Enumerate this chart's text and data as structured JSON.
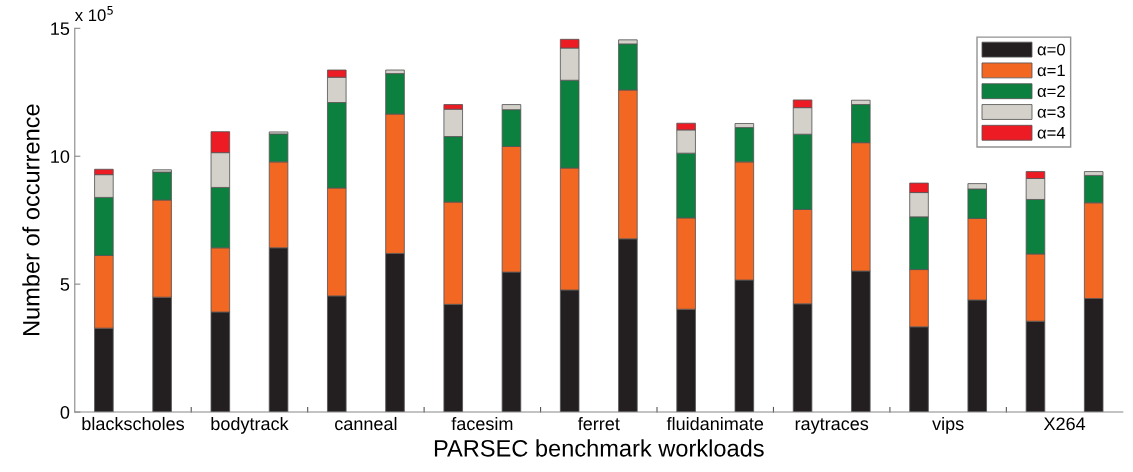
{
  "chart_data": {
    "type": "bar",
    "stacked": true,
    "xlabel": "PARSEC benchmark workloads",
    "ylabel": "Number of occurrence",
    "annotations": [
      "x 10$^{5}$"
    ],
    "categories": [
      "blackscholes",
      null,
      "bodytrack",
      null,
      "canneal",
      null,
      "facesim",
      null,
      "ferret",
      null,
      "fluidanimate",
      null,
      "raytraces",
      null,
      "vips",
      null,
      "X264",
      null
    ],
    "series": [
      {
        "name": "α=0",
        "color": "#231f20",
        "values": [
          3.28,
          4.49,
          3.91,
          6.42,
          4.54,
          6.2,
          4.21,
          5.47,
          4.77,
          6.77,
          4.02,
          5.16,
          4.23,
          5.51,
          3.33,
          4.38,
          3.55,
          4.44
        ]
      },
      {
        "name": "α=1",
        "color": "#f26722",
        "values": [
          2.84,
          3.8,
          2.51,
          3.36,
          4.22,
          5.45,
          4.0,
          4.91,
          4.77,
          5.82,
          3.57,
          4.62,
          3.69,
          5.02,
          2.24,
          3.19,
          2.63,
          3.74
        ]
      },
      {
        "name": "α=2",
        "color": "#0c803f",
        "values": [
          2.27,
          1.09,
          2.36,
          1.09,
          3.34,
          1.58,
          2.56,
          1.44,
          3.43,
          1.8,
          2.53,
          1.34,
          2.94,
          1.49,
          2.06,
          1.15,
          2.13,
          1.07
        ]
      },
      {
        "name": "α=3",
        "color": "#d4d1ca",
        "values": [
          0.89,
          0.09,
          1.36,
          0.08,
          0.99,
          0.14,
          1.07,
          0.2,
          1.26,
          0.16,
          0.91,
          0.16,
          1.04,
          0.17,
          0.95,
          0.21,
          0.82,
          0.15
        ]
      },
      {
        "name": "α=4",
        "color": "#ed1c24",
        "values": [
          0.21,
          null,
          0.82,
          null,
          0.28,
          null,
          0.18,
          null,
          0.34,
          null,
          0.26,
          null,
          0.3,
          null,
          0.37,
          null,
          0.27,
          null
        ]
      }
    ],
    "ylim": [
      0,
      15
    ],
    "yticks": [
      0,
      5,
      10,
      15
    ],
    "grid": false,
    "legend": "top right"
  }
}
